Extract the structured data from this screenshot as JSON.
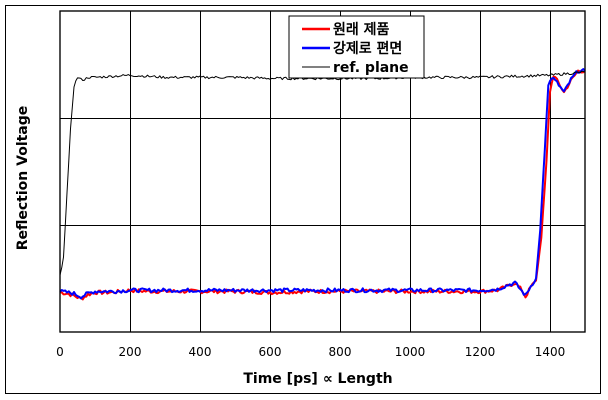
{
  "chart_data": {
    "type": "line",
    "title": "",
    "xlabel": "Time [ps]  ∝  Length",
    "ylabel": "Reflection Voltage",
    "xlim": [
      0,
      1500
    ],
    "ylim": [
      0,
      3
    ],
    "x_ticks": [
      0,
      200,
      400,
      600,
      800,
      1000,
      1200,
      1400
    ],
    "y_ticks_labeled": false,
    "grid": true,
    "legend_position": "top-center",
    "series": [
      {
        "name": "원래 제품",
        "color": "#ff0000",
        "width": 2,
        "points": [
          [
            0,
            0.37
          ],
          [
            20,
            0.36
          ],
          [
            40,
            0.34
          ],
          [
            60,
            0.31
          ],
          [
            80,
            0.35
          ],
          [
            100,
            0.37
          ],
          [
            150,
            0.37
          ],
          [
            200,
            0.39
          ],
          [
            250,
            0.38
          ],
          [
            300,
            0.38
          ],
          [
            400,
            0.38
          ],
          [
            500,
            0.38
          ],
          [
            600,
            0.37
          ],
          [
            700,
            0.38
          ],
          [
            800,
            0.38
          ],
          [
            900,
            0.38
          ],
          [
            1000,
            0.38
          ],
          [
            1100,
            0.38
          ],
          [
            1200,
            0.38
          ],
          [
            1250,
            0.39
          ],
          [
            1280,
            0.43
          ],
          [
            1300,
            0.46
          ],
          [
            1320,
            0.39
          ],
          [
            1330,
            0.33
          ],
          [
            1345,
            0.42
          ],
          [
            1360,
            0.48
          ],
          [
            1375,
            0.88
          ],
          [
            1390,
            1.6
          ],
          [
            1400,
            2.25
          ],
          [
            1410,
            2.4
          ],
          [
            1420,
            2.35
          ],
          [
            1440,
            2.24
          ],
          [
            1460,
            2.35
          ],
          [
            1480,
            2.44
          ],
          [
            1500,
            2.44
          ]
        ]
      },
      {
        "name": "강제로 편면",
        "color": "#0000ff",
        "width": 2,
        "points": [
          [
            0,
            0.38
          ],
          [
            20,
            0.37
          ],
          [
            40,
            0.36
          ],
          [
            60,
            0.33
          ],
          [
            80,
            0.36
          ],
          [
            100,
            0.38
          ],
          [
            150,
            0.38
          ],
          [
            200,
            0.39
          ],
          [
            250,
            0.39
          ],
          [
            300,
            0.39
          ],
          [
            400,
            0.39
          ],
          [
            500,
            0.39
          ],
          [
            600,
            0.39
          ],
          [
            700,
            0.39
          ],
          [
            800,
            0.39
          ],
          [
            900,
            0.39
          ],
          [
            1000,
            0.39
          ],
          [
            1100,
            0.39
          ],
          [
            1200,
            0.39
          ],
          [
            1250,
            0.4
          ],
          [
            1280,
            0.44
          ],
          [
            1300,
            0.46
          ],
          [
            1320,
            0.38
          ],
          [
            1330,
            0.34
          ],
          [
            1345,
            0.43
          ],
          [
            1360,
            0.5
          ],
          [
            1372,
            0.95
          ],
          [
            1385,
            1.7
          ],
          [
            1395,
            2.3
          ],
          [
            1405,
            2.38
          ],
          [
            1420,
            2.33
          ],
          [
            1440,
            2.24
          ],
          [
            1460,
            2.36
          ],
          [
            1480,
            2.44
          ],
          [
            1500,
            2.44
          ]
        ]
      },
      {
        "name": "ref. plane",
        "color": "#000000",
        "width": 1,
        "points": [
          [
            0,
            0.52
          ],
          [
            10,
            0.7
          ],
          [
            20,
            1.3
          ],
          [
            30,
            1.9
          ],
          [
            40,
            2.3
          ],
          [
            50,
            2.38
          ],
          [
            60,
            2.36
          ],
          [
            70,
            2.36
          ],
          [
            80,
            2.38
          ],
          [
            100,
            2.38
          ],
          [
            150,
            2.39
          ],
          [
            200,
            2.4
          ],
          [
            250,
            2.39
          ],
          [
            300,
            2.38
          ],
          [
            350,
            2.38
          ],
          [
            400,
            2.38
          ],
          [
            500,
            2.38
          ],
          [
            600,
            2.37
          ],
          [
            700,
            2.37
          ],
          [
            800,
            2.37
          ],
          [
            900,
            2.37
          ],
          [
            1000,
            2.38
          ],
          [
            1100,
            2.38
          ],
          [
            1200,
            2.38
          ],
          [
            1300,
            2.39
          ],
          [
            1400,
            2.4
          ],
          [
            1500,
            2.43
          ]
        ]
      }
    ]
  },
  "legend": {
    "items": [
      {
        "label": "원래 제품",
        "color": "#ff0000"
      },
      {
        "label": "강제로 편면",
        "color": "#0000ff"
      },
      {
        "label": "ref. plane",
        "color": "#000000"
      }
    ]
  },
  "axes": {
    "x_tick_labels": [
      "0",
      "200",
      "400",
      "600",
      "800",
      "1000",
      "1200",
      "1400"
    ],
    "x_title": "Time [ps]  ∝  Length",
    "y_title": "Reflection Voltage"
  }
}
